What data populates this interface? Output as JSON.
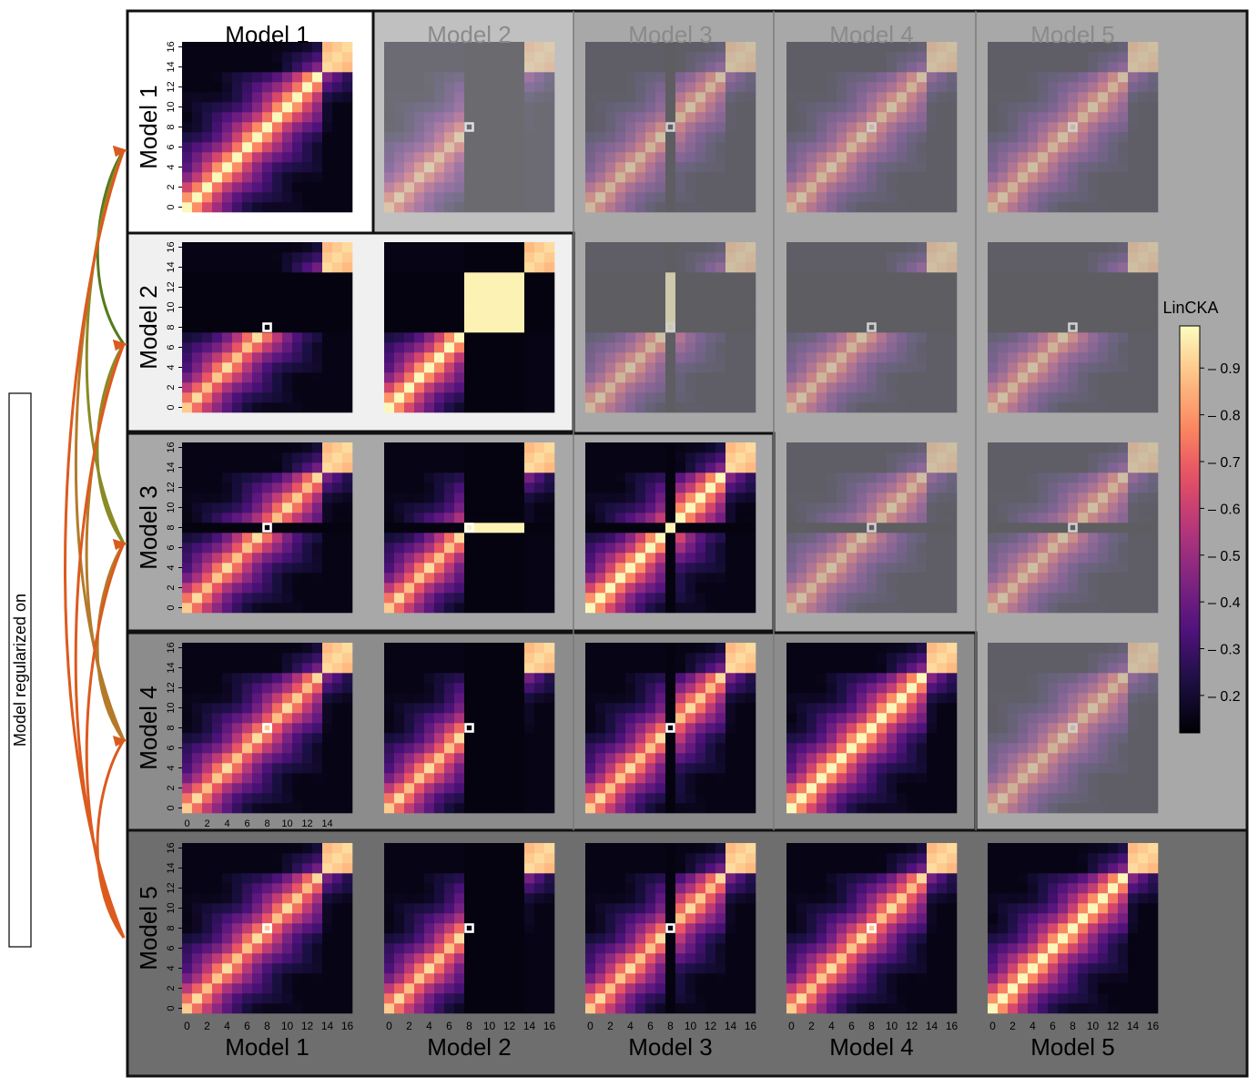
{
  "chart_data": {
    "type": "heatmap",
    "title": "",
    "description_text": "",
    "side_label": "Model regularized on",
    "models": [
      "Model 1",
      "Model 2",
      "Model 3",
      "Model 4",
      "Model 5"
    ],
    "col_labels": [
      "Model 1",
      "Model 2",
      "Model 3",
      "Model 4",
      "Model 5"
    ],
    "row_labels": [
      "Model 1",
      "Model 2",
      "Model 3",
      "Model 4",
      "Model 5"
    ],
    "colorbar": {
      "label": "LinCKA",
      "ticks": [
        0.2,
        0.3,
        0.4,
        0.5,
        0.6,
        0.7,
        0.8,
        0.9
      ],
      "tick_labels": [
        "0.2",
        "0.3",
        "0.4",
        "0.5",
        "0.6",
        "0.7",
        "0.8",
        "0.9"
      ],
      "vmin": 0.12,
      "vmax": 0.99,
      "colormap": "magma"
    },
    "layers": 17,
    "y_ticks": [
      "0",
      "2",
      "4",
      "6",
      "8",
      "10",
      "12",
      "14",
      "16"
    ],
    "x_ticks_full": [
      "0",
      "2",
      "4",
      "6",
      "8",
      "10",
      "12",
      "14",
      "16"
    ],
    "x_ticks_row4": [
      "0",
      "2",
      "4",
      "6",
      "8",
      "10",
      "12",
      "14"
    ],
    "highlight_layer": 8,
    "knockouts": {
      "Model 1": [],
      "Model 2": [
        8,
        9,
        10,
        11,
        12,
        13
      ],
      "Model 3": [
        8
      ],
      "Model 4": [],
      "Model 5": []
    },
    "note": "Lower triangle (row >= column) and the diagonal show LinCKA heatmaps at full opacity; the upper triangle is shown faded."
  },
  "colors": {
    "panel_row1": "#ffffff",
    "panel_row2": "#f0f0f0",
    "panel_row3": "#a8a8a8",
    "panel_row4": "#8c8c8c",
    "panel_row5": "#6e6e6e",
    "arrow_colors": [
      "#2d5a17",
      "#557a1d",
      "#8a8a26",
      "#b47a2a",
      "#dc5a1e"
    ]
  }
}
